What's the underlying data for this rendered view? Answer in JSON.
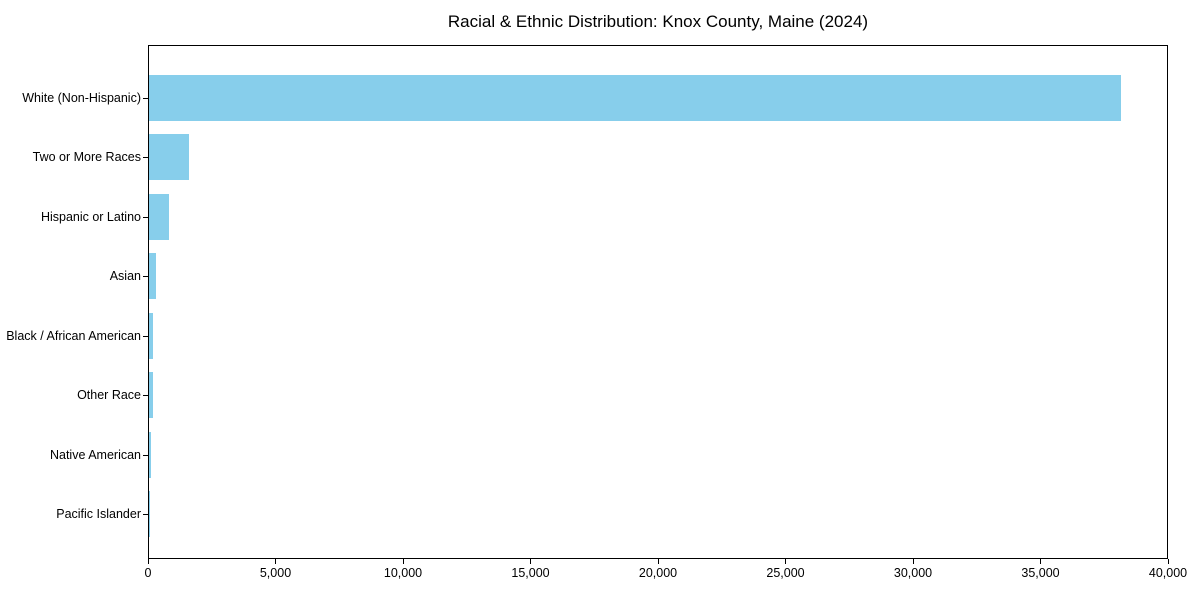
{
  "chart_data": {
    "type": "bar",
    "orientation": "horizontal",
    "title": "Racial & Ethnic Distribution: Knox County, Maine (2024)",
    "categories": [
      "White (Non-Hispanic)",
      "Two or More Races",
      "Hispanic or Latino",
      "Asian",
      "Black / African American",
      "Other Race",
      "Native American",
      "Pacific Islander"
    ],
    "values": [
      38200,
      1570,
      780,
      270,
      140,
      140,
      60,
      10
    ],
    "xlabel": "",
    "ylabel": "",
    "xlim": [
      0,
      40000
    ],
    "x_ticks": [
      0,
      5000,
      10000,
      15000,
      20000,
      25000,
      30000,
      35000,
      40000
    ],
    "x_tick_labels": [
      "0",
      "5,000",
      "10,000",
      "15,000",
      "20,000",
      "25,000",
      "30,000",
      "35,000",
      "40,000"
    ],
    "bar_color": "#87CEEB",
    "spine_color": "#000000",
    "grid": false,
    "legend": null
  }
}
